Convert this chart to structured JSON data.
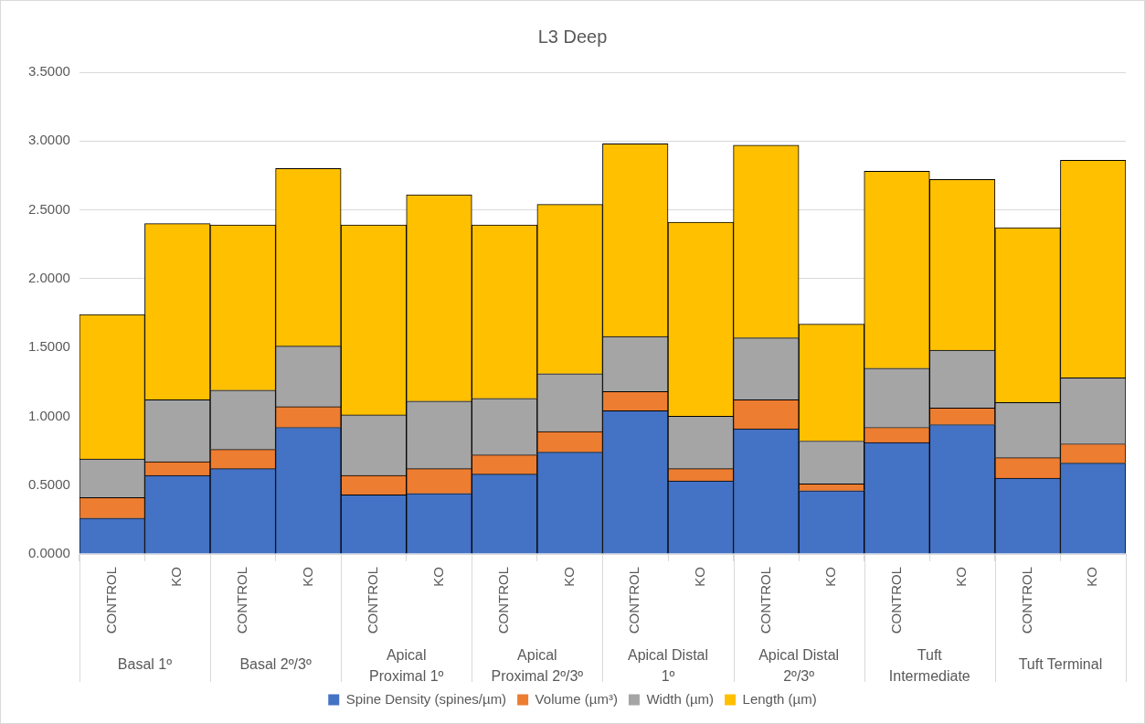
{
  "chart_data": {
    "type": "bar",
    "title": "L3 Deep",
    "stacked": true,
    "grid": "y",
    "legend": "bottom",
    "categories": [
      "CONTROL",
      "KO",
      "CONTROL",
      "KO",
      "CONTROL",
      "KO",
      "CONTROL",
      "KO",
      "CONTROL",
      "KO",
      "CONTROL",
      "KO",
      "CONTROL",
      "KO",
      "CONTROL",
      "KO"
    ],
    "annotations": [
      "Basal 1º",
      "Basal 2º/3º",
      "Apical Proximal 1º",
      "Apical Proximal 2º/3º",
      "Apical Distal 1º",
      "Apical Distal 2º/3º",
      "Tuft Intermediate",
      "Tuft Terminal"
    ],
    "ylim": [
      0,
      3.5
    ],
    "yticks": [
      {
        "value": 0,
        "label": "0.0000"
      },
      {
        "value": 0.5,
        "label": "0.5000"
      },
      {
        "value": 1,
        "label": "1.0000"
      },
      {
        "value": 1.5,
        "label": "1.5000"
      },
      {
        "value": 2,
        "label": "2.0000"
      },
      {
        "value": 2.5,
        "label": "2.5000"
      },
      {
        "value": 3,
        "label": "3.0000"
      },
      {
        "value": 3.5,
        "label": "3.5000"
      }
    ],
    "series": [
      {
        "name": "Spine Density (spines/µm)",
        "color": "#4472c4",
        "values": [
          0.26,
          0.57,
          0.62,
          0.92,
          0.43,
          0.44,
          0.58,
          0.74,
          1.04,
          0.53,
          0.91,
          0.46,
          0.81,
          0.94,
          0.55,
          0.66
        ]
      },
      {
        "name": "Volume (µm³)",
        "color": "#ed7d31",
        "values": [
          0.15,
          0.1,
          0.14,
          0.15,
          0.14,
          0.18,
          0.14,
          0.15,
          0.14,
          0.09,
          0.21,
          0.05,
          0.11,
          0.12,
          0.15,
          0.14
        ]
      },
      {
        "name": "Width (µm)",
        "color": "#a5a5a5",
        "values": [
          0.28,
          0.45,
          0.43,
          0.44,
          0.44,
          0.49,
          0.41,
          0.42,
          0.4,
          0.38,
          0.45,
          0.31,
          0.43,
          0.42,
          0.4,
          0.48
        ]
      },
      {
        "name": "Length (µm)",
        "color": "#ffc000",
        "values": [
          1.05,
          1.28,
          1.2,
          1.29,
          1.38,
          1.5,
          1.26,
          1.23,
          1.4,
          1.41,
          1.4,
          0.85,
          1.43,
          1.24,
          1.27,
          1.58
        ]
      }
    ]
  }
}
